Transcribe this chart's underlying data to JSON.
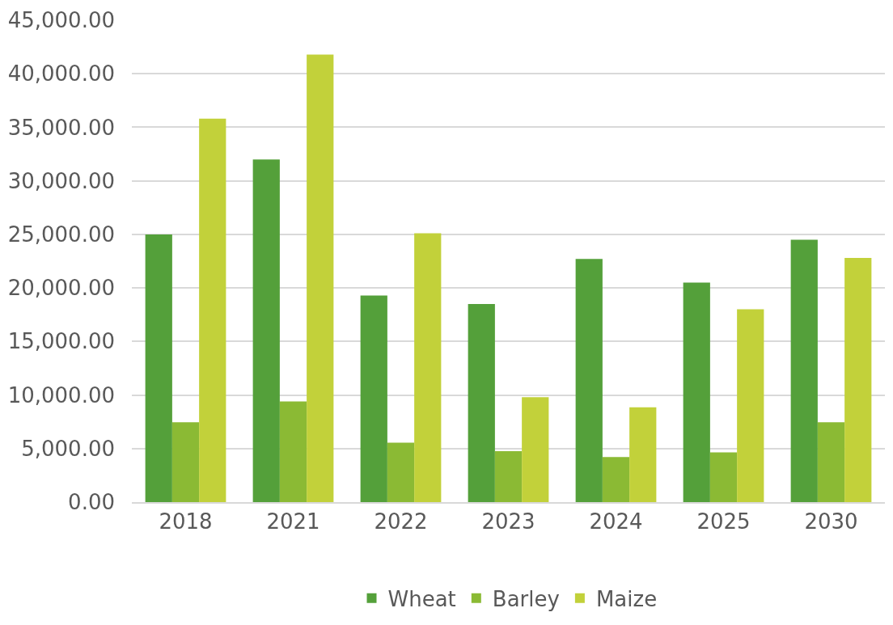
{
  "chart_data": {
    "type": "bar",
    "categories": [
      "2018",
      "2021",
      "2022",
      "2023",
      "2024",
      "2025",
      "2030"
    ],
    "series": [
      {
        "name": "Wheat",
        "color": "#54a03a",
        "values": [
          25000,
          32000,
          19300,
          18500,
          22700,
          20500,
          24500
        ]
      },
      {
        "name": "Barley",
        "color": "#8bba34",
        "values": [
          7450,
          9400,
          5550,
          4750,
          4200,
          4650,
          7450
        ]
      },
      {
        "name": "Maize",
        "color": "#c2d13a",
        "values": [
          35800,
          41800,
          25100,
          9800,
          8850,
          18000,
          22800
        ]
      }
    ],
    "ylim": [
      0,
      45000
    ],
    "yticks": [
      {
        "value": 0,
        "label": "0.00"
      },
      {
        "value": 5000,
        "label": "5,000.00"
      },
      {
        "value": 10000,
        "label": "10,000.00"
      },
      {
        "value": 15000,
        "label": "15,000.00"
      },
      {
        "value": 20000,
        "label": "20,000.00"
      },
      {
        "value": 25000,
        "label": "25,000.00"
      },
      {
        "value": 30000,
        "label": "30,000.00"
      },
      {
        "value": 35000,
        "label": "35,000.00"
      },
      {
        "value": 40000,
        "label": "40,000.00"
      },
      {
        "value": 45000,
        "label": "45,000.00"
      }
    ],
    "grid": "y",
    "legend": "bottom"
  }
}
